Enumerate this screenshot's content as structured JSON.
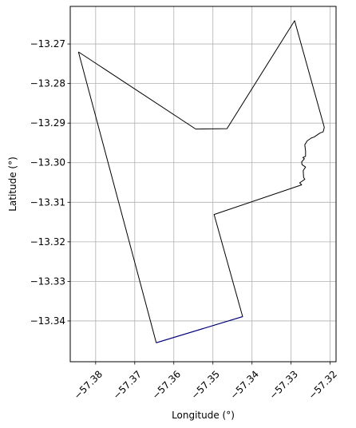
{
  "chart_data": {
    "type": "line",
    "title": "",
    "xlabel": "Longitude (°)",
    "ylabel": "Latitude (°)",
    "xlim": [
      -57.3865,
      -57.3185
    ],
    "ylim": [
      -13.3503,
      -13.2605
    ],
    "grid": true,
    "xticks": [
      -57.38,
      -57.37,
      -57.36,
      -57.35,
      -57.34,
      -57.33,
      -57.32
    ],
    "xtick_labels": [
      "−57.38",
      "−57.37",
      "−57.36",
      "−57.35",
      "−57.34",
      "−57.33",
      "−57.32"
    ],
    "yticks": [
      -13.27,
      -13.28,
      -13.29,
      -13.3,
      -13.31,
      -13.32,
      -13.33,
      -13.34
    ],
    "ytick_labels": [
      "−13.27",
      "−13.28",
      "−13.29",
      "−13.30",
      "−13.31",
      "−13.32",
      "−13.33",
      "−13.34"
    ],
    "series": [
      {
        "color": "#000000",
        "highlight_color": "#00008b",
        "x": [
          -57.3844,
          -57.3544,
          -57.3464,
          -57.3291,
          -57.3215,
          -57.3218,
          -57.3226,
          -57.3241,
          -57.3249,
          -57.3259,
          -57.3265,
          -57.3263,
          -57.3263,
          -57.327,
          -57.3266,
          -57.3273,
          -57.3272,
          -57.3263,
          -57.3269,
          -57.3268,
          -57.3265,
          -57.3278,
          -57.3273,
          -57.3497,
          -57.3424,
          -57.3645,
          -57.3844
        ],
        "y": [
          -13.272,
          -13.2915,
          -13.2914,
          -13.2641,
          -13.2911,
          -13.2922,
          -13.2925,
          -13.2935,
          -13.2938,
          -13.2945,
          -13.2955,
          -13.297,
          -13.2984,
          -13.2987,
          -13.299,
          -13.2998,
          -13.3005,
          -13.3011,
          -13.302,
          -13.3037,
          -13.3042,
          -13.3051,
          -13.3056,
          -13.3131,
          -13.3389,
          -13.3455,
          -13.272
        ]
      }
    ]
  }
}
